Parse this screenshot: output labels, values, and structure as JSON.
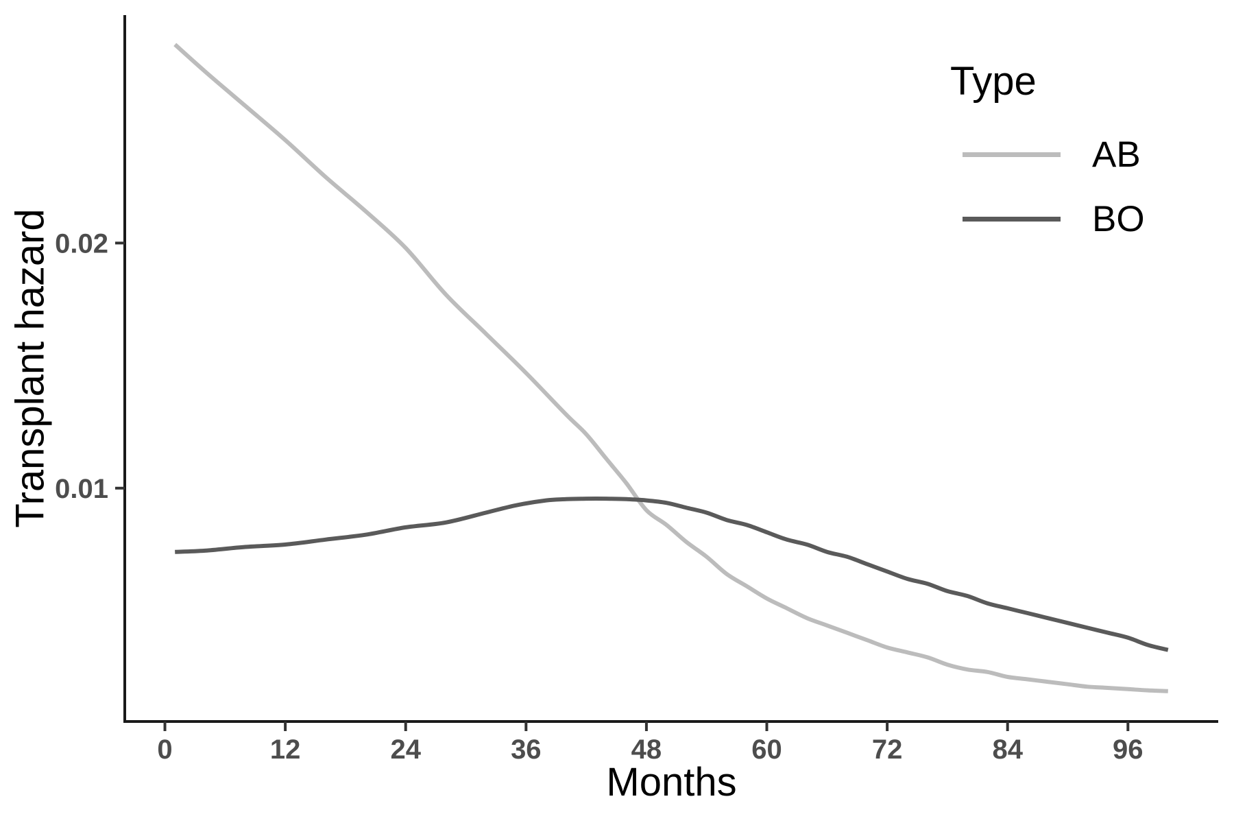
{
  "chart_data": {
    "type": "line",
    "title": "",
    "xlabel": "Months",
    "ylabel": "Transplant hazard",
    "grid": false,
    "background": "#ffffff",
    "axis_color": "#1a1a1a",
    "tick_color": "#333333",
    "tick_label_color": "#4d4d4d",
    "xlim": [
      -4,
      105
    ],
    "ylim": [
      0.00048,
      0.0293
    ],
    "x_ticks": [
      0,
      12,
      24,
      36,
      48,
      60,
      72,
      84,
      96
    ],
    "x_tick_labels": [
      "0",
      "12",
      "24",
      "36",
      "48",
      "60",
      "72",
      "84",
      "96"
    ],
    "y_ticks": [
      0.01,
      0.02
    ],
    "y_tick_labels": [
      "0.01",
      "0.02"
    ],
    "legend_title": "Type",
    "legend_position": "top-right",
    "series": [
      {
        "name": "AB",
        "color": "#bcbcbc",
        "width": 6,
        "x": [
          1,
          4,
          8,
          12,
          16,
          20,
          24,
          28,
          32,
          36,
          40,
          42,
          44,
          46,
          48,
          50,
          52,
          54,
          56,
          58,
          60,
          62,
          64,
          66,
          68,
          70,
          72,
          74,
          76,
          78,
          80,
          82,
          84,
          86,
          88,
          90,
          92,
          94,
          96,
          98,
          100
        ],
        "y": [
          0.0281,
          0.027,
          0.0256,
          0.0242,
          0.0227,
          0.0213,
          0.0198,
          0.0179,
          0.0163,
          0.0147,
          0.013,
          0.0122,
          0.0112,
          0.0102,
          0.0091,
          0.0085,
          0.0078,
          0.0072,
          0.0065,
          0.006,
          0.0055,
          0.0051,
          0.0047,
          0.0044,
          0.0041,
          0.0038,
          0.0035,
          0.0033,
          0.0031,
          0.0028,
          0.0026,
          0.0025,
          0.0023,
          0.0022,
          0.0021,
          0.002,
          0.0019,
          0.00185,
          0.0018,
          0.00175,
          0.00172
        ]
      },
      {
        "name": "BO",
        "color": "#5a5a5a",
        "width": 6,
        "x": [
          1,
          4,
          8,
          12,
          16,
          20,
          24,
          28,
          32,
          35,
          38,
          40,
          42,
          44,
          46,
          48,
          50,
          52,
          54,
          56,
          58,
          60,
          62,
          64,
          66,
          68,
          70,
          72,
          74,
          76,
          78,
          80,
          82,
          84,
          86,
          88,
          90,
          92,
          94,
          96,
          98,
          100
        ],
        "y": [
          0.0074,
          0.00745,
          0.0076,
          0.0077,
          0.0079,
          0.0081,
          0.0084,
          0.0086,
          0.009,
          0.0093,
          0.0095,
          0.00955,
          0.00957,
          0.00957,
          0.00955,
          0.0095,
          0.0094,
          0.0092,
          0.009,
          0.0087,
          0.0085,
          0.0082,
          0.0079,
          0.0077,
          0.0074,
          0.0072,
          0.0069,
          0.0066,
          0.0063,
          0.0061,
          0.0058,
          0.0056,
          0.0053,
          0.0051,
          0.0049,
          0.0047,
          0.0045,
          0.0043,
          0.0041,
          0.0039,
          0.0036,
          0.0034
        ]
      }
    ]
  },
  "axes": {
    "x_label": "Months",
    "y_label": "Transplant hazard"
  },
  "legend": {
    "title": "Type",
    "items": [
      {
        "label": "AB",
        "color": "#bcbcbc"
      },
      {
        "label": "BO",
        "color": "#5a5a5a"
      }
    ]
  }
}
